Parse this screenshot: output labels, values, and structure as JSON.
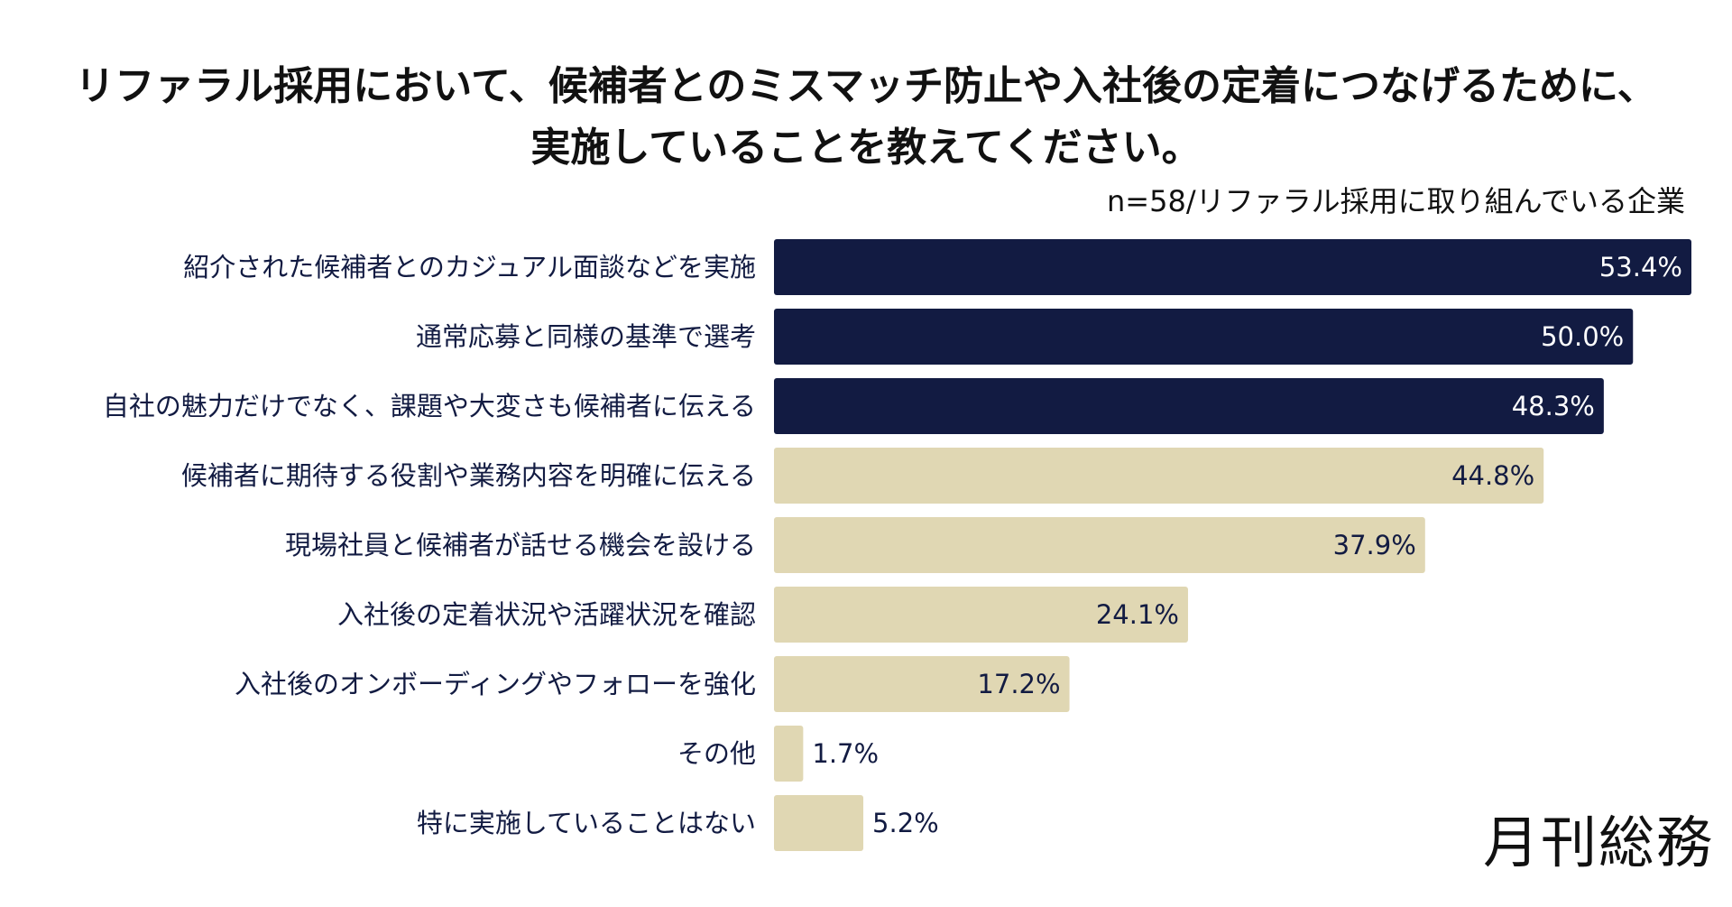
{
  "chart_data": {
    "type": "bar",
    "orientation": "horizontal",
    "title_lines": [
      "リファラル採用において、候補者とのミスマッチ防止や入社後の定着につなげるために、",
      "実施していることを教えてください。"
    ],
    "subtitle": "n=58/リファラル採用に取り組んでいる企業",
    "categories": [
      "紹介された候補者とのカジュアル面談などを実施",
      "通常応募と同様の基準で選考",
      "自社の魅力だけでなく、課題や大変さも候補者に伝える",
      "候補者に期待する役割や業務内容を明確に伝える",
      "現場社員と候補者が話せる機会を設ける",
      "入社後の定着状況や活躍状況を確認",
      "入社後のオンボーディングやフォローを強化",
      "その他",
      "特に実施していることはない"
    ],
    "values": [
      53.4,
      50.0,
      48.3,
      44.8,
      37.9,
      24.1,
      17.2,
      1.7,
      5.2
    ],
    "value_labels": [
      "53.4%",
      "50.0%",
      "48.3%",
      "44.8%",
      "37.9%",
      "24.1%",
      "17.2%",
      "1.7%",
      "5.2%"
    ],
    "highlighted_count": 3,
    "xlim": [
      0,
      53.4
    ],
    "grid": false,
    "colors": {
      "highlight": "#121b42",
      "normal": "#e0d7b3",
      "label_text": "#121b42",
      "highlight_value_text": "#ffffff",
      "normal_value_text": "#121b42"
    }
  },
  "logo": "月刊総務"
}
